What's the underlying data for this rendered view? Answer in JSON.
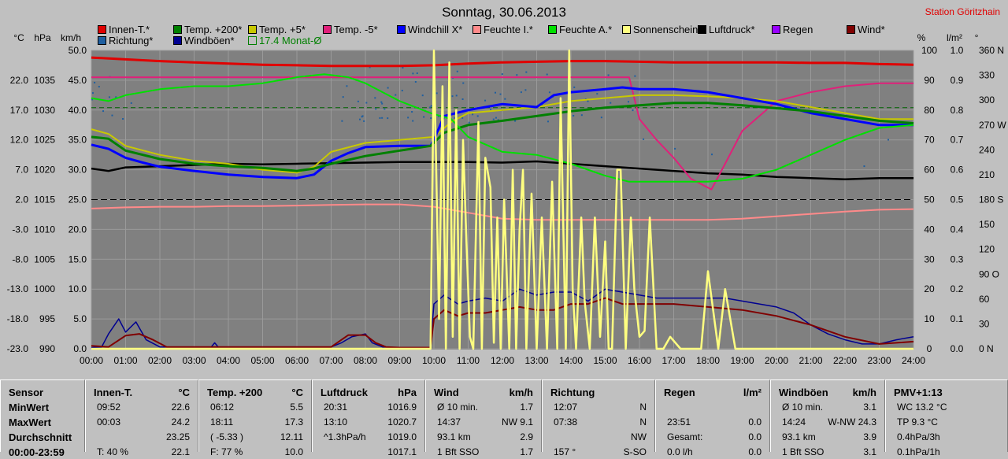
{
  "header": {
    "title": "Sonntag, 30.06.2013",
    "station": "Station Göritzhain"
  },
  "legend": [
    {
      "label": "Innen-T.*",
      "color": "#e00000"
    },
    {
      "label": "Temp. +200*",
      "color": "#008000"
    },
    {
      "label": "Temp. +5*",
      "color": "#c8c800"
    },
    {
      "label": "Temp. -5*",
      "color": "#e0207a"
    },
    {
      "label": "Windchill X*",
      "color": "#0000ff"
    },
    {
      "label": "Feuchte I.*",
      "color": "#ff8a8a"
    },
    {
      "label": "Feuchte A.*",
      "color": "#00e000"
    },
    {
      "label": "Sonnenschein*",
      "color": "#ffff80"
    },
    {
      "label": "Luftdruck*",
      "color": "#000000"
    },
    {
      "label": "Regen",
      "color": "#9900ff"
    },
    {
      "label": "Wind*",
      "color": "#800000"
    },
    {
      "label": "Richtung*",
      "color": "#1f5fa0"
    },
    {
      "label": "Windböen*",
      "color": "#000090"
    },
    {
      "label": "17.4 Monat-Ø",
      "color": "#008000",
      "hollow": true
    }
  ],
  "axis_titles": {
    "temp": "°C",
    "press": "hPa",
    "wind": "km/h",
    "pct": "%",
    "rain": "l/m²",
    "deg": "°"
  },
  "chart_data": {
    "type": "line",
    "title": "Sonntag, 30.06.2013",
    "x_ticks": [
      "00:00",
      "01:00",
      "02:00",
      "03:00",
      "04:00",
      "05:00",
      "06:00",
      "07:00",
      "08:00",
      "09:00",
      "10:00",
      "11:00",
      "12:00",
      "13:00",
      "14:00",
      "15:00",
      "16:00",
      "17:00",
      "18:00",
      "19:00",
      "20:00",
      "21:00",
      "22:00",
      "23:00",
      "24:00"
    ],
    "temp_ticks": [
      "22.0",
      "17.0",
      "12.0",
      "7.0",
      "2.0",
      "-3.0",
      "-8.0",
      "-13.0",
      "-18.0",
      "-23.0"
    ],
    "temp_tick_values": [
      22,
      17,
      12,
      7,
      2,
      -3,
      -8,
      -13,
      -18,
      -23
    ],
    "press_ticks": [
      "1035",
      "1030",
      "1025",
      "1020",
      "1015",
      "1010",
      "1005",
      "1000",
      "995",
      "990"
    ],
    "wind_ticks": [
      "50.0",
      "45.0",
      "40.0",
      "35.0",
      "30.0",
      "25.0",
      "20.0",
      "15.0",
      "10.0",
      "5.0",
      "0.0"
    ],
    "pct_ticks": [
      "100",
      "90",
      "80",
      "70",
      "60",
      "50",
      "40",
      "30",
      "20",
      "10",
      "0"
    ],
    "rain_ticks": [
      "1.0",
      "0.9",
      "0.8",
      "0.7",
      "0.6",
      "0.5",
      "0.4",
      "0.3",
      "0.2",
      "0.1",
      "0.0"
    ],
    "deg_ticks": [
      "360 N",
      "330",
      "300",
      "270 W",
      "240",
      "210",
      "180 S",
      "150",
      "120",
      "90 O",
      "60",
      "30",
      "0 N"
    ],
    "wind_ylim": [
      0,
      50
    ],
    "month_avg": 17.4,
    "series": [
      {
        "name": "Luftdruck*",
        "color": "#000000",
        "width": 2.5,
        "scale": "wind",
        "x": [
          0,
          0.5,
          1,
          2,
          3,
          4,
          5,
          6,
          7,
          8,
          9,
          10,
          11,
          12,
          13,
          14,
          15,
          16,
          17,
          18,
          19,
          20,
          21,
          22,
          23,
          24
        ],
        "y": [
          30.2,
          29.8,
          30.4,
          30.6,
          30.8,
          31.0,
          30.9,
          31.0,
          31.1,
          31.2,
          31.3,
          31.3,
          31.3,
          31.2,
          31.4,
          31.0,
          30.6,
          30.2,
          29.8,
          29.4,
          29.2,
          28.8,
          28.6,
          28.4,
          28.6,
          28.6
        ]
      },
      {
        "name": "Innen-T.*",
        "color": "#e00000",
        "width": 3,
        "scale": "wind",
        "x": [
          0,
          1,
          2,
          3,
          4,
          5,
          6,
          7,
          8,
          9,
          10,
          11,
          12,
          13,
          14,
          15,
          16,
          17,
          18,
          19,
          20,
          21,
          22,
          23,
          24
        ],
        "y": [
          48.8,
          48.5,
          48.2,
          48.0,
          47.8,
          47.6,
          47.5,
          47.4,
          47.4,
          47.4,
          47.5,
          47.8,
          48.0,
          48.1,
          48.2,
          48.2,
          48.1,
          48.0,
          48.0,
          48.0,
          48.0,
          47.9,
          47.9,
          47.7,
          47.6
        ]
      },
      {
        "name": "Temp. -5*",
        "color": "#e0207a",
        "width": 2,
        "scale": "wind",
        "x": [
          0,
          2,
          4,
          6,
          8,
          10,
          12,
          14,
          15.7,
          16.0,
          16.5,
          17,
          17.5,
          18.1,
          18.5,
          19,
          19.5,
          20,
          21,
          22,
          23,
          24
        ],
        "y": [
          45.5,
          45.5,
          45.5,
          45.5,
          45.5,
          45.5,
          45.5,
          45.5,
          45.5,
          38.5,
          35,
          32,
          28.5,
          26.7,
          31,
          36.5,
          39,
          41.5,
          43,
          44,
          44.5,
          44.5
        ]
      },
      {
        "name": "Temp. +5*",
        "color": "#c8c800",
        "width": 2,
        "scale": "wind",
        "x": [
          0,
          0.5,
          1,
          2,
          3,
          4,
          5,
          6,
          6.5,
          7,
          8,
          9,
          10,
          10.5,
          11,
          12,
          13,
          14,
          15,
          16,
          17,
          18,
          19,
          20,
          21,
          22,
          23,
          24
        ],
        "y": [
          36.8,
          36,
          34,
          32.5,
          31.5,
          31,
          30,
          29.5,
          30.5,
          33,
          34.5,
          35,
          35.5,
          38,
          39.5,
          40,
          40.5,
          41.5,
          42,
          42.5,
          42.5,
          42.3,
          42,
          41.5,
          40.5,
          39.5,
          38.5,
          38.5
        ]
      },
      {
        "name": "Windchill X*",
        "color": "#0000ff",
        "width": 3,
        "scale": "wind",
        "x": [
          0,
          0.5,
          1,
          1.5,
          2,
          3,
          4,
          5,
          6,
          6.5,
          7,
          7.5,
          8,
          9,
          9.9,
          10,
          10.3,
          11,
          12,
          13,
          13.5,
          14,
          15,
          15.5,
          16,
          17,
          18,
          19,
          20,
          21,
          22,
          23,
          24
        ],
        "y": [
          34.2,
          33.5,
          32,
          31.2,
          30.5,
          29.8,
          29.2,
          28.8,
          28.6,
          29.2,
          31.5,
          32.8,
          33.8,
          34,
          34,
          35,
          39,
          40,
          41,
          40.5,
          42.5,
          43,
          43.5,
          43.8,
          43.5,
          43.5,
          43,
          42,
          41,
          39.5,
          38.5,
          37.5,
          37.5
        ]
      },
      {
        "name": "Temp. +200*",
        "color": "#008000",
        "width": 3,
        "scale": "wind",
        "x": [
          0,
          0.5,
          1,
          2,
          3,
          4,
          5,
          6,
          6.5,
          7,
          8,
          9,
          9.9,
          10.3,
          11,
          12,
          13,
          14,
          15,
          16,
          17,
          18,
          19,
          20,
          21,
          22,
          23,
          24
        ],
        "y": [
          35.5,
          35.2,
          33.2,
          31.8,
          31,
          30.6,
          30.3,
          29.8,
          30.2,
          31,
          32.3,
          33.2,
          34,
          36.2,
          37.5,
          38.2,
          39,
          39.8,
          40.4,
          40.8,
          41.2,
          41.2,
          40.8,
          40.3,
          39.8,
          39,
          38.2,
          37.8
        ]
      },
      {
        "name": "Feuchte A.*",
        "color": "#00e000",
        "width": 2,
        "scale": "pct",
        "x": [
          0,
          0.5,
          1,
          2,
          3,
          4,
          5,
          6,
          6.8,
          7.5,
          8,
          9,
          9.9,
          10.5,
          11,
          12,
          13,
          14,
          15,
          15.7,
          16,
          17,
          18,
          19,
          20,
          21,
          22,
          23,
          24
        ],
        "y": [
          84,
          83,
          85,
          87,
          88,
          88,
          89,
          91,
          92,
          91,
          89,
          83,
          79,
          77,
          71,
          66,
          65,
          62,
          58,
          56,
          56,
          56,
          56,
          57,
          60,
          65,
          70,
          74,
          75
        ]
      },
      {
        "name": "Feuchte I.*",
        "color": "#ff8a8a",
        "width": 2,
        "scale": "wind",
        "x": [
          0,
          1,
          2,
          3,
          4,
          5,
          6,
          7,
          8,
          9,
          10,
          11,
          12,
          13,
          14,
          15,
          16,
          17,
          18,
          19,
          20,
          21,
          22,
          23,
          24
        ],
        "y": [
          23.5,
          23.7,
          23.8,
          23.8,
          23.9,
          23.9,
          24.0,
          24.1,
          24.2,
          24.2,
          23.8,
          22.8,
          21.8,
          21.6,
          21.6,
          21.6,
          21.6,
          21.6,
          21.6,
          21.8,
          22.2,
          22.6,
          23.0,
          23.3,
          23.4
        ]
      },
      {
        "name": "Windböen*",
        "color": "#000090",
        "width": 1.5,
        "scale": "wind",
        "x": [
          0,
          0.3,
          0.5,
          0.8,
          1,
          1.3,
          1.6,
          2,
          3.5,
          3.6,
          3.7,
          7,
          7.3,
          7.6,
          8,
          8.2,
          8.5,
          9,
          9.9,
          10,
          10.3,
          10.7,
          11,
          11.5,
          12,
          12.5,
          13,
          13.5,
          14,
          14.5,
          15,
          15.5,
          16,
          16.5,
          17,
          17.5,
          18,
          18.5,
          19,
          20,
          20.5,
          21,
          21.5,
          22,
          22.5,
          23,
          23.5,
          24
        ],
        "y": [
          0.2,
          0.3,
          2.5,
          5,
          2.8,
          4.5,
          1.5,
          0.3,
          0.3,
          1,
          0.3,
          0.3,
          1,
          2,
          2.5,
          1,
          0.3,
          0.2,
          0.2,
          7.5,
          9,
          7.5,
          8,
          8.5,
          8,
          10,
          9,
          9.5,
          9.5,
          8,
          10,
          9.5,
          9,
          8.5,
          8.5,
          8.5,
          8.5,
          8.5,
          8,
          7,
          6,
          4,
          2.5,
          1.5,
          0.8,
          0.8,
          1.5,
          2
        ]
      },
      {
        "name": "Wind*",
        "color": "#800000",
        "width": 2,
        "scale": "wind",
        "x": [
          0,
          0.5,
          1,
          1.4,
          1.8,
          2.2,
          3.5,
          7,
          7.5,
          8,
          8.3,
          8.6,
          9,
          9.9,
          10,
          10.3,
          10.7,
          11,
          11.5,
          12,
          12.5,
          13,
          13.5,
          14,
          14.5,
          15,
          15.5,
          16,
          17,
          18,
          19,
          20,
          21,
          22,
          23,
          24
        ],
        "y": [
          0.5,
          0.3,
          2.2,
          2.5,
          1.5,
          0.3,
          0.3,
          0.3,
          2.3,
          2.3,
          1,
          0.3,
          0.2,
          0.2,
          5,
          6.5,
          5.5,
          6,
          6,
          6.5,
          7,
          6.5,
          6.5,
          7.5,
          7.5,
          8.5,
          7.5,
          7.5,
          7.5,
          7,
          6.5,
          5.5,
          4,
          2,
          0.8,
          1.2
        ]
      },
      {
        "name": "Sonnenschein*",
        "color": "#ffff80",
        "width": 2.5,
        "scale": "wind",
        "x": [
          0,
          9.85,
          9.9,
          10.0,
          10.05,
          10.15,
          10.25,
          10.35,
          10.45,
          10.55,
          10.65,
          10.75,
          10.85,
          10.95,
          11.05,
          11.15,
          11.3,
          11.4,
          11.5,
          11.65,
          11.75,
          11.85,
          11.95,
          12.05,
          12.2,
          12.3,
          12.4,
          12.5,
          12.6,
          12.7,
          12.85,
          13.0,
          13.15,
          13.3,
          13.45,
          13.6,
          13.7,
          13.85,
          13.95,
          14.05,
          14.15,
          14.3,
          14.4,
          14.55,
          14.7,
          14.85,
          15.0,
          15.1,
          15.2,
          15.35,
          15.45,
          15.6,
          15.75,
          15.85,
          16.0,
          16.15,
          16.3,
          16.5,
          16.7,
          16.9,
          17.2,
          17.5,
          17.8,
          18.0,
          18.3,
          18.5,
          18.8,
          19.0,
          24
        ],
        "y": [
          0,
          0,
          0,
          50,
          35,
          5,
          44,
          0,
          48,
          2,
          40,
          0,
          35,
          18,
          2,
          0,
          38,
          0,
          32,
          27,
          1,
          22,
          0,
          25,
          0,
          30,
          0,
          20,
          30,
          0,
          26,
          0,
          22,
          0,
          28,
          0,
          42,
          0,
          50,
          10,
          0,
          22,
          8,
          0,
          22,
          2,
          18,
          0,
          0,
          30,
          30,
          0,
          22,
          10,
          2,
          3,
          22,
          0,
          0,
          2,
          0,
          0,
          0,
          13,
          0,
          10,
          0,
          0,
          0
        ]
      }
    ]
  },
  "stats": {
    "cols": [
      {
        "key": "sensor",
        "title": "Sensor",
        "unit": "",
        "rows": [
          [
            "MinWert",
            ""
          ],
          [
            "MaxWert",
            ""
          ],
          [
            "Durchschnitt",
            ""
          ],
          [
            "00:00-23:59",
            ""
          ]
        ]
      },
      {
        "key": "innen",
        "title": "Innen-T.",
        "unit": "°C",
        "rows": [
          [
            "09:52",
            "22.6"
          ],
          [
            "00:03",
            "24.2"
          ],
          [
            "",
            "23.25"
          ],
          [
            "T: 40 %",
            "22.1"
          ]
        ]
      },
      {
        "key": "temp200",
        "title": "Temp. +200",
        "unit": "°C",
        "rows": [
          [
            "06:12",
            "5.5"
          ],
          [
            "18:11",
            "17.3"
          ],
          [
            "( -5.33 )",
            "12.11"
          ],
          [
            "F: 77 %",
            "10.0"
          ]
        ]
      },
      {
        "key": "luftdruck",
        "title": "Luftdruck",
        "unit": "hPa",
        "rows": [
          [
            "20:31",
            "1016.9"
          ],
          [
            "13:10",
            "1020.7"
          ],
          [
            "^1.3hPa/h",
            "1019.0"
          ],
          [
            "",
            "1017.1"
          ]
        ]
      },
      {
        "key": "wind",
        "title": "Wind",
        "unit": "km/h",
        "rows": [
          [
            "Ø 10 min.",
            "1.7"
          ],
          [
            "14:37",
            "NW 9.1"
          ],
          [
            "93.1 km",
            "2.9"
          ],
          [
            "1 Bft SSO",
            "1.7"
          ]
        ]
      },
      {
        "key": "richtung",
        "title": "Richtung",
        "unit": "",
        "rows": [
          [
            "12:07",
            "N"
          ],
          [
            "07:38",
            "N"
          ],
          [
            "",
            "NW"
          ],
          [
            "157 °",
            "S-SO"
          ]
        ]
      },
      {
        "key": "regen",
        "title": "Regen",
        "unit": "l/m²",
        "rows": [
          [
            "",
            ""
          ],
          [
            "23:51",
            "0.0"
          ],
          [
            "Gesamt:",
            "0.0"
          ],
          [
            "0.0 l/h",
            "0.0"
          ]
        ]
      },
      {
        "key": "windboeen",
        "title": "Windböen",
        "unit": "km/h",
        "rows": [
          [
            "Ø 10 min.",
            "3.1"
          ],
          [
            "14:24",
            "W-NW 24.3"
          ],
          [
            "93.1 km",
            "3.9"
          ],
          [
            "1 Bft SSO",
            "3.1"
          ]
        ]
      },
      {
        "key": "pmv",
        "title": "PMV+1:13",
        "unit": "",
        "rows": [
          [
            "WC 13.2 °C",
            ""
          ],
          [
            "TP 9.3 °C",
            ""
          ],
          [
            "0.4hPa/3h",
            ""
          ],
          [
            "0.1hPa/1h",
            ""
          ]
        ]
      }
    ]
  }
}
